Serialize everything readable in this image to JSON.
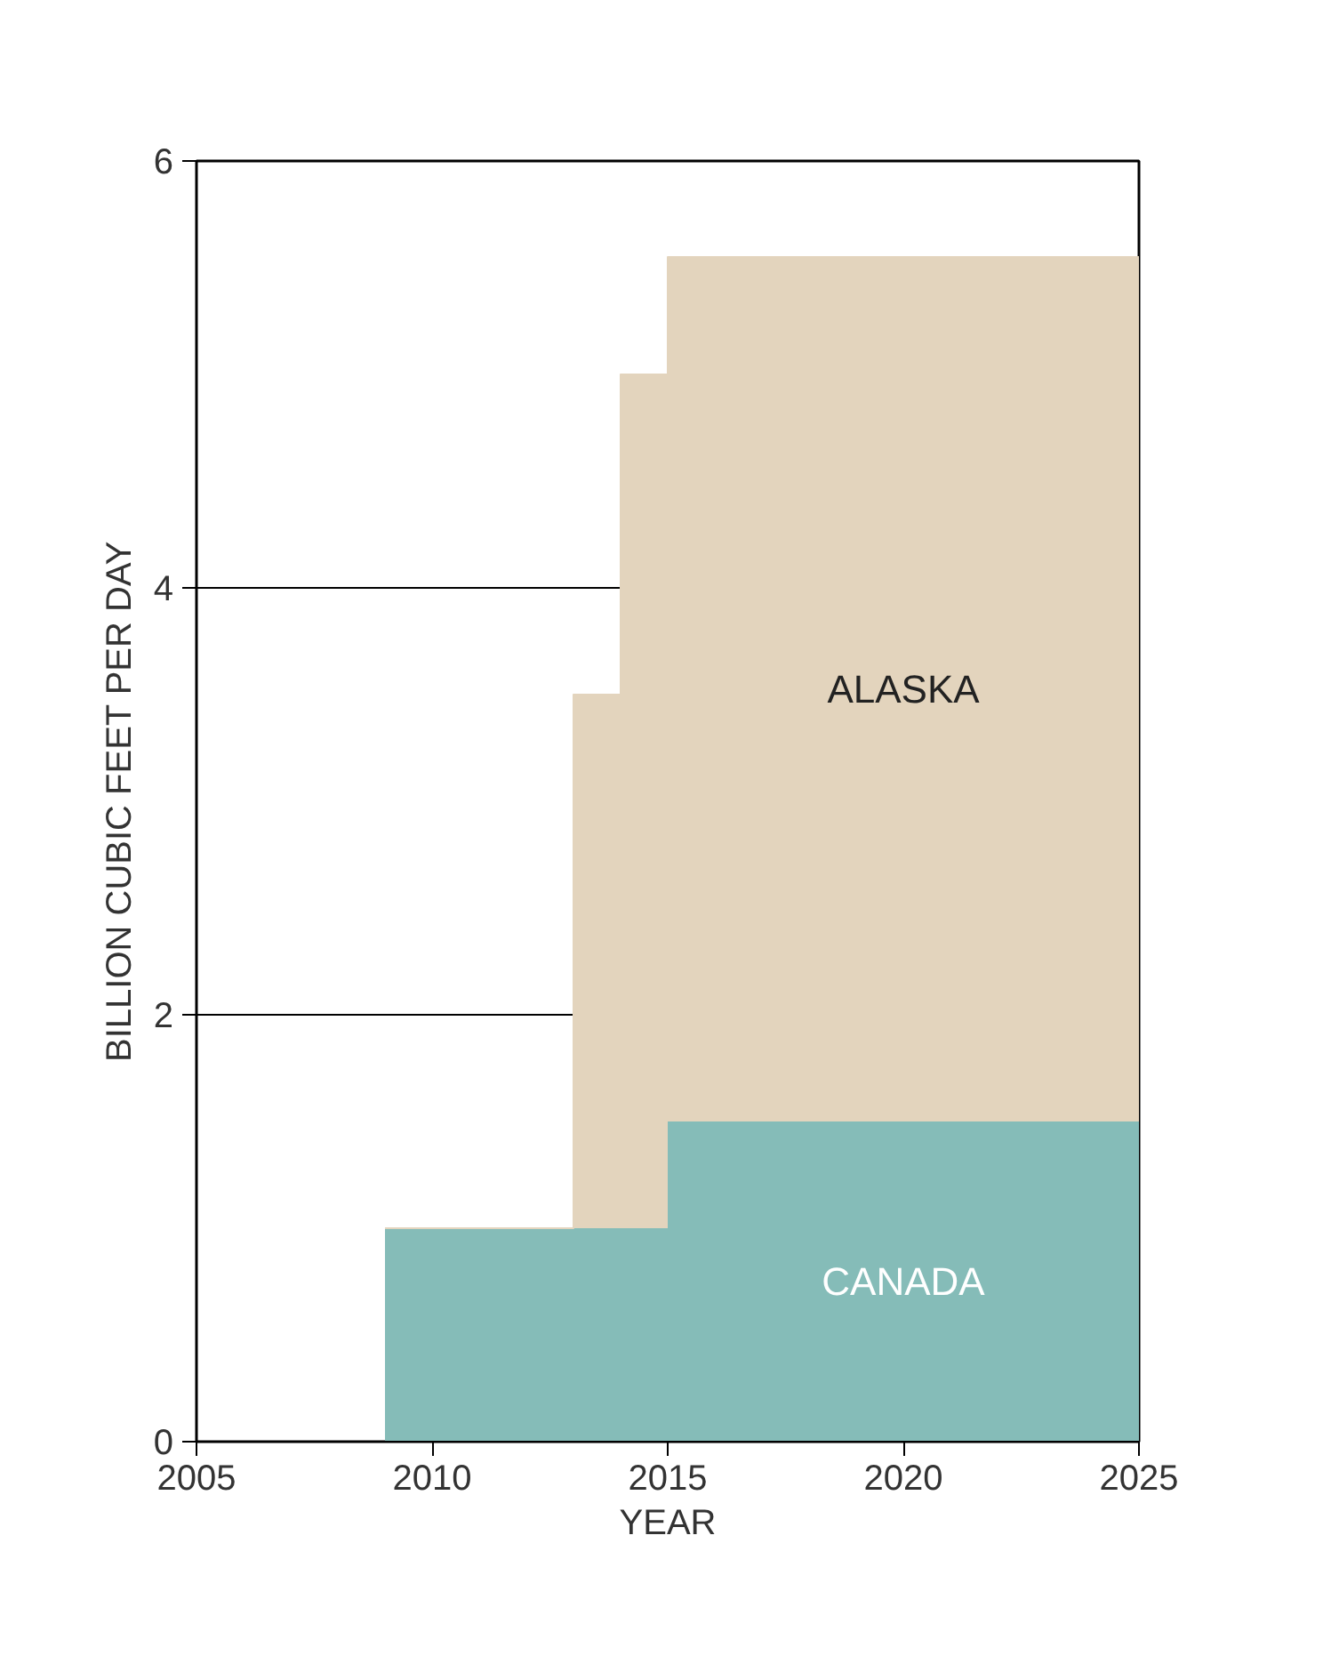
{
  "chart_data": {
    "type": "area",
    "stacked": true,
    "xlabel": "YEAR",
    "ylabel": "BILLION CUBIC FEET PER DAY",
    "x": [
      2009,
      2013,
      2013,
      2014,
      2014,
      2015,
      2015,
      2025
    ],
    "series": [
      {
        "name": "CANADA",
        "color": "#85bcb8",
        "values": [
          1.0,
          1.0,
          1.0,
          1.0,
          1.0,
          1.0,
          1.5,
          1.5
        ]
      },
      {
        "name": "ALASKA",
        "color": "#e3d4bd",
        "values": [
          0,
          0,
          2.5,
          2.5,
          4.0,
          4.0,
          4.05,
          4.05
        ]
      }
    ],
    "xlim": [
      2005,
      2025
    ],
    "xticks": [
      2005,
      2010,
      2015,
      2020,
      2025
    ],
    "ylim": [
      0,
      6
    ],
    "yticks": [
      0,
      2,
      4,
      6
    ],
    "grid": "y"
  }
}
